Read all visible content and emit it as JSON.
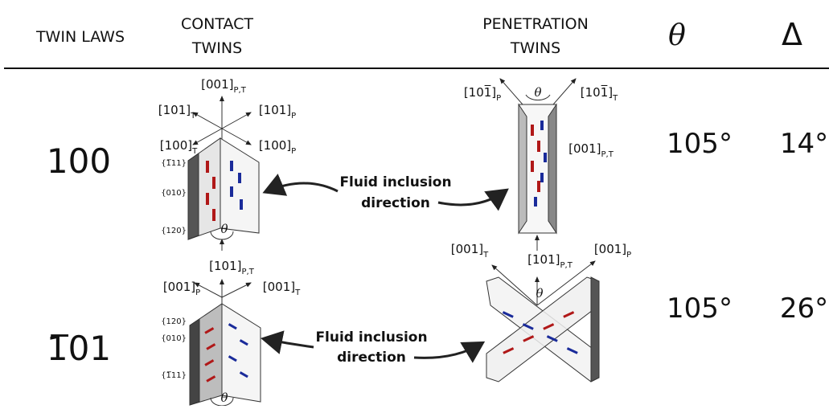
{
  "header": {
    "twin_laws": "TWIN LAWS",
    "contact": [
      "CONTACT",
      "TWINS"
    ],
    "penetration": [
      "PENETRATION",
      "TWINS"
    ],
    "theta": "θ",
    "delta": "Δ"
  },
  "rows": [
    {
      "law": "100",
      "theta": "105°",
      "delta": "14°",
      "fluid": [
        "Fluid inclusion",
        "direction"
      ],
      "contact": {
        "axes": [
          [
            "[001]",
            "P,T"
          ],
          [
            "[101]",
            "T"
          ],
          [
            "[101]",
            "P"
          ],
          [
            "[100]",
            "T"
          ],
          [
            "[100]",
            "P"
          ]
        ],
        "faces": [
          "{1̅11}",
          "{010}",
          "{120}"
        ],
        "angle": "θ"
      },
      "penetration": {
        "axes": [
          [
            "[101̅]",
            "P"
          ],
          [
            "[101̅]",
            "T"
          ],
          [
            "[001]",
            "P,T"
          ]
        ],
        "angle": "θ"
      }
    },
    {
      "law": "1̅01",
      "theta": "105°",
      "delta": "26°",
      "fluid": [
        "Fluid inclusion",
        "direction"
      ],
      "contact": {
        "axes": [
          [
            "[101]",
            "P,T"
          ],
          [
            "[001]",
            "P"
          ],
          [
            "[001]",
            "T"
          ]
        ],
        "faces": [
          "{120}",
          "{010}",
          "{1̅11}"
        ],
        "angle": "θ"
      },
      "penetration": {
        "axes": [
          [
            "[001]",
            "T"
          ],
          [
            "[101]",
            "P,T"
          ],
          [
            "[001]",
            "P"
          ]
        ],
        "angle": "θ"
      }
    }
  ]
}
